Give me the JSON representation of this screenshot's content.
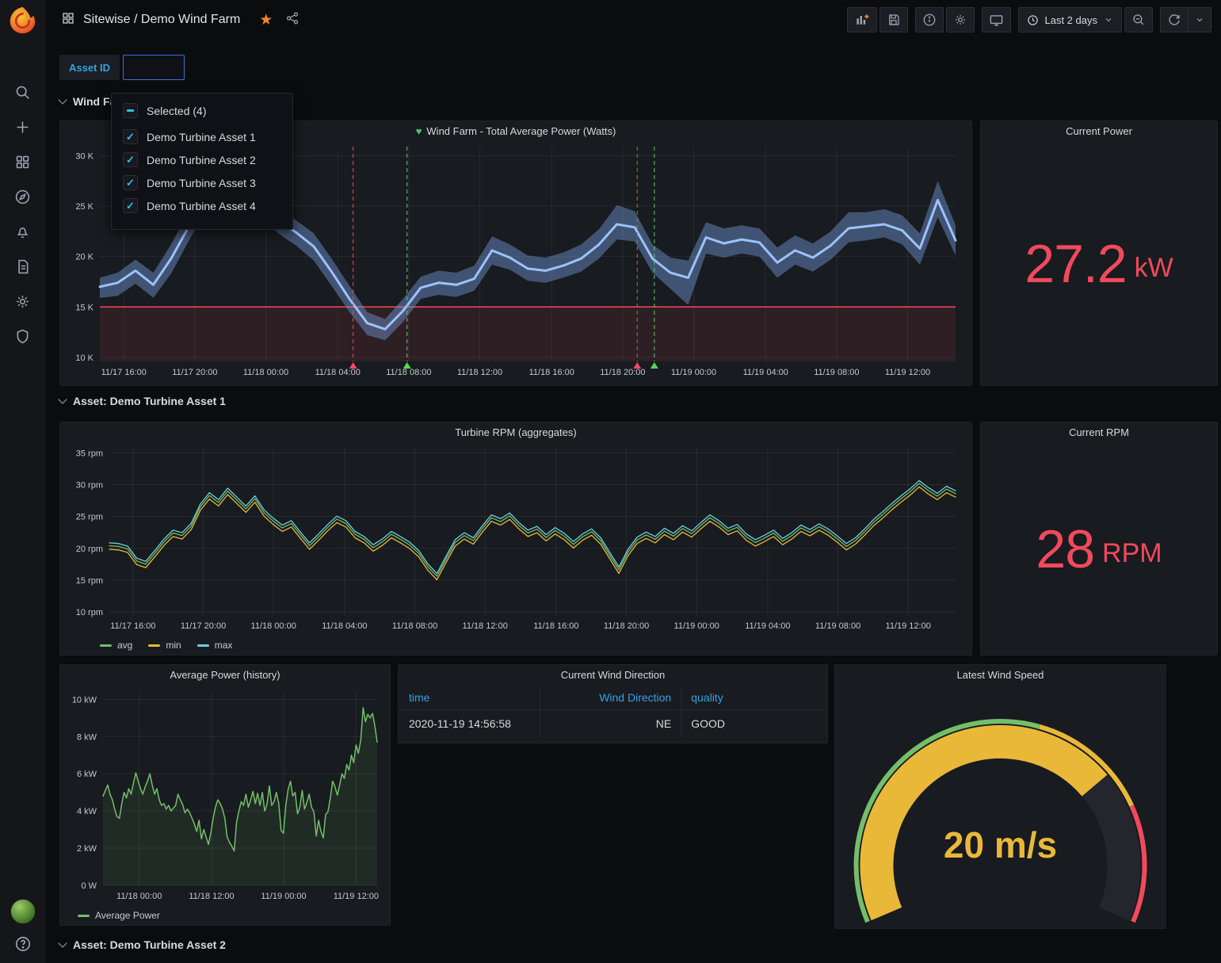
{
  "header": {
    "title": "Sitewise / Demo Wind Farm",
    "time_range": "Last 2 days",
    "toolbar_icons": [
      "add-panel-icon",
      "save-icon",
      "info-icon",
      "settings-icon",
      "tv-mode-icon",
      "clock-icon",
      "zoom-out-icon",
      "refresh-icon",
      "chevron-down-icon"
    ],
    "breadcrumb_icons": [
      "dashboards-icon",
      "favorite-star-icon",
      "share-icon"
    ]
  },
  "sidebar": {
    "icons": [
      "search-icon",
      "plus-icon",
      "dashboards-icon",
      "explore-icon",
      "alerting-icon",
      "docs-icon",
      "configuration-icon",
      "security-icon"
    ],
    "bottom_icons": [
      "user-avatar",
      "help-icon"
    ]
  },
  "variables": {
    "label": "Asset ID",
    "value": ""
  },
  "dropdown": {
    "selected_label": "Selected (4)",
    "options": [
      "Demo Turbine Asset 1",
      "Demo Turbine Asset 2",
      "Demo Turbine Asset 3",
      "Demo Turbine Asset 4"
    ]
  },
  "rows": [
    "Wind Farm",
    "Asset: Demo Turbine Asset 1",
    "Asset: Demo Turbine Asset 2"
  ],
  "colors": {
    "red": "#f2495c",
    "green": "#73bf69",
    "yellow": "#eab839",
    "cyan": "#6ed0e0",
    "line_blue": "#9cc2ff",
    "band_blue": "rgba(116,154,216,0.45)",
    "link_blue": "#33a2e5",
    "annotation_green": "#56d75a",
    "checkbox": "#33bfe0",
    "star_orange": "#f08a24"
  },
  "chart_data": [
    {
      "id": "wf-power",
      "type": "band",
      "title": "Wind Farm - Total Average Power (Watts)",
      "ylim": [
        9.6,
        30.9
      ],
      "yticks": [
        {
          "v": 10,
          "label": "10 K"
        },
        {
          "v": 15,
          "label": "15 K"
        },
        {
          "v": 20,
          "label": "20 K"
        },
        {
          "v": 25,
          "label": "25 K"
        },
        {
          "v": 30,
          "label": "30 K"
        }
      ],
      "xticks": [
        {
          "f": 0.028,
          "label": "11/17 16:00"
        },
        {
          "f": 0.111,
          "label": "11/17 20:00"
        },
        {
          "f": 0.194,
          "label": "11/18 00:00"
        },
        {
          "f": 0.278,
          "label": "11/18 04:00"
        },
        {
          "f": 0.361,
          "label": "11/18 08:00"
        },
        {
          "f": 0.444,
          "label": "11/18 12:00"
        },
        {
          "f": 0.528,
          "label": "11/18 16:00"
        },
        {
          "f": 0.611,
          "label": "11/18 20:00"
        },
        {
          "f": 0.694,
          "label": "11/19 00:00"
        },
        {
          "f": 0.778,
          "label": "11/19 04:00"
        },
        {
          "f": 0.861,
          "label": "11/19 08:00"
        },
        {
          "f": 0.944,
          "label": "11/19 12:00"
        }
      ],
      "threshold": {
        "value": 15,
        "color": "#f2495c",
        "fill": "rgba(242,73,92,0.10)"
      },
      "band": {
        "color": "rgba(116,154,216,0.45)",
        "lo": [
          15.9,
          16.1,
          17.3,
          15.9,
          18.3,
          21.6,
          24.6,
          26.1,
          25.3,
          24.0,
          22.3,
          21.1,
          19.6,
          17.1,
          14.5,
          12.2,
          11.7,
          13.5,
          15.8,
          16.2,
          16.0,
          16.6,
          19.2,
          18.7,
          17.6,
          17.4,
          17.9,
          18.5,
          19.8,
          21.7,
          21.5,
          18.4,
          16.8,
          15.2,
          20.3,
          19.9,
          20.3,
          20.0,
          17.9,
          19.2,
          18.5,
          19.7,
          21.4,
          21.6,
          21.9,
          21.2,
          19.2,
          23.9,
          20.1
        ],
        "hi": [
          17.9,
          18.4,
          19.7,
          18.4,
          21.2,
          24.6,
          27.7,
          29.6,
          28.4,
          26.9,
          24.9,
          23.6,
          22.3,
          19.8,
          17.1,
          14.5,
          13.8,
          15.8,
          18.0,
          18.6,
          18.4,
          19.1,
          22.0,
          21.2,
          20.1,
          19.9,
          20.4,
          21.2,
          22.7,
          25.1,
          24.5,
          21.2,
          19.9,
          19.6,
          23.4,
          22.8,
          23.1,
          22.8,
          20.9,
          22.1,
          21.3,
          22.5,
          24.4,
          24.4,
          24.7,
          24.1,
          22.3,
          27.5,
          23.1
        ]
      },
      "series": [
        {
          "name": "avg",
          "color": "#9cc2ff",
          "width": 3,
          "values": [
            17.0,
            17.4,
            18.6,
            17.2,
            19.8,
            23.0,
            26.0,
            27.6,
            26.8,
            25.4,
            23.6,
            22.4,
            21.0,
            18.5,
            15.8,
            13.4,
            12.8,
            14.6,
            16.9,
            17.4,
            17.2,
            17.8,
            20.6,
            19.9,
            18.8,
            18.6,
            19.1,
            19.8,
            21.2,
            23.2,
            22.9,
            19.8,
            18.4,
            17.9,
            21.9,
            21.3,
            21.7,
            21.4,
            19.4,
            20.6,
            19.9,
            21.1,
            22.8,
            23.0,
            23.2,
            22.6,
            20.8,
            25.6,
            21.6
          ]
        }
      ],
      "annotations": [
        {
          "f": 0.296,
          "color": "#f2495c"
        },
        {
          "f": 0.359,
          "color": "#56d75a"
        },
        {
          "f": 0.628,
          "color": "#f2495c"
        },
        {
          "f": 0.648,
          "color": "#56d75a"
        }
      ]
    },
    {
      "type": "stat",
      "title": "Current Power",
      "value": "27.2",
      "unit": "kW",
      "color": "#f2495c"
    },
    {
      "id": "turbine-rpm",
      "type": "multiline",
      "title": "Turbine RPM (aggregates)",
      "ylim": [
        9.5,
        35.8
      ],
      "yticks": [
        {
          "v": 10,
          "label": "10 rpm"
        },
        {
          "v": 15,
          "label": "15 rpm"
        },
        {
          "v": 20,
          "label": "20 rpm"
        },
        {
          "v": 25,
          "label": "25 rpm"
        },
        {
          "v": 30,
          "label": "30 rpm"
        },
        {
          "v": 35,
          "label": "35 rpm"
        }
      ],
      "xticks": [
        {
          "f": 0.028,
          "label": "11/17 16:00"
        },
        {
          "f": 0.111,
          "label": "11/17 20:00"
        },
        {
          "f": 0.194,
          "label": "11/18 00:00"
        },
        {
          "f": 0.278,
          "label": "11/18 04:00"
        },
        {
          "f": 0.361,
          "label": "11/18 08:00"
        },
        {
          "f": 0.444,
          "label": "11/18 12:00"
        },
        {
          "f": 0.528,
          "label": "11/18 16:00"
        },
        {
          "f": 0.611,
          "label": "11/18 20:00"
        },
        {
          "f": 0.694,
          "label": "11/19 00:00"
        },
        {
          "f": 0.778,
          "label": "11/19 04:00"
        },
        {
          "f": 0.861,
          "label": "11/19 08:00"
        },
        {
          "f": 0.944,
          "label": "11/19 12:00"
        }
      ],
      "series": [
        {
          "name": "avg",
          "color": "#73bf69",
          "width": 1.3,
          "values": [
            20.4,
            20.3,
            19.9,
            18.0,
            17.5,
            19.2,
            21.0,
            22.4,
            22.0,
            23.5,
            26.5,
            28.3,
            27.2,
            29.0,
            27.6,
            26.2,
            27.8,
            25.6,
            24.3,
            23.2,
            23.9,
            22.1,
            20.4,
            21.8,
            23.3,
            24.6,
            23.9,
            22.2,
            21.4,
            20.1,
            21.0,
            22.2,
            21.4,
            20.5,
            19.2,
            17.1,
            15.6,
            18.3,
            20.9,
            22.0,
            21.2,
            23.1,
            24.8,
            24.2,
            25.1,
            23.6,
            22.4,
            23.0,
            21.7,
            22.8,
            21.9,
            20.6,
            21.8,
            22.6,
            21.2,
            18.9,
            16.6,
            19.4,
            21.3,
            22.1,
            21.4,
            22.7,
            21.9,
            23.1,
            22.3,
            23.6,
            24.8,
            23.9,
            22.7,
            23.3,
            21.8,
            20.9,
            21.6,
            22.4,
            21.1,
            22.0,
            23.2,
            22.5,
            23.4,
            22.6,
            21.5,
            20.3,
            21.2,
            22.6,
            24.1,
            25.3,
            26.6,
            27.8,
            28.9,
            30.2,
            29.1,
            28.2,
            29.3,
            28.6
          ]
        },
        {
          "name": "min",
          "color": "#eab839",
          "width": 1.3,
          "offset": -0.55
        },
        {
          "name": "max",
          "color": "#6ed0e0",
          "width": 1.3,
          "offset": 0.45
        }
      ]
    },
    {
      "type": "stat",
      "title": "Current RPM",
      "value": "28",
      "unit": "RPM",
      "color": "#f2495c"
    },
    {
      "id": "avg-power-history",
      "type": "area",
      "title": "Average Power (history)",
      "ylim": [
        0,
        10.4
      ],
      "yticks": [
        {
          "v": 0,
          "label": "0 W"
        },
        {
          "v": 2,
          "label": "2 kW"
        },
        {
          "v": 4,
          "label": "4 kW"
        },
        {
          "v": 6,
          "label": "6 kW"
        },
        {
          "v": 8,
          "label": "8 kW"
        },
        {
          "v": 10,
          "label": "10 kW"
        }
      ],
      "xticks": [
        {
          "f": 0.132,
          "label": "11/18 00:00"
        },
        {
          "f": 0.396,
          "label": "11/18 12:00"
        },
        {
          "f": 0.659,
          "label": "11/19 00:00"
        },
        {
          "f": 0.923,
          "label": "11/19 12:00"
        }
      ],
      "series": [
        {
          "name": "Average Power",
          "color": "#73bf69",
          "width": 1.5,
          "fill": "rgba(115,191,105,0.10)",
          "values": [
            4.8,
            5.1,
            5.4,
            4.9,
            4.6,
            4.1,
            3.7,
            3.6,
            4.4,
            5.0,
            4.7,
            5.2,
            4.9,
            5.5,
            6.05,
            5.6,
            5.2,
            4.9,
            5.3,
            5.6,
            6.0,
            5.4,
            4.9,
            5.2,
            4.6,
            4.3,
            4.4,
            4.1,
            4.3,
            4.0,
            4.15,
            4.3,
            4.9,
            4.6,
            4.35,
            3.9,
            4.1,
            3.9,
            3.6,
            3.3,
            2.9,
            3.5,
            2.5,
            3.0,
            2.6,
            2.2,
            2.8,
            3.6,
            4.2,
            4.6,
            4.4,
            4.1,
            3.6,
            2.6,
            2.3,
            2.1,
            1.85,
            3.4,
            4.0,
            4.5,
            4.3,
            4.9,
            4.2,
            4.6,
            5.05,
            4.4,
            4.95,
            4.3,
            5.0,
            4.0,
            4.35,
            5.35,
            4.3,
            4.5,
            5.0,
            4.4,
            2.95,
            2.8,
            4.3,
            5.15,
            5.6,
            4.8,
            5.0,
            3.85,
            4.2,
            5.1,
            4.1,
            4.45,
            4.9,
            4.2,
            3.95,
            2.65,
            3.5,
            2.9,
            2.55,
            3.8,
            3.95,
            4.7,
            5.6,
            5.3,
            4.85,
            5.4,
            6.0,
            5.75,
            6.5,
            6.2,
            7.0,
            6.6,
            7.55,
            7.1,
            7.8,
            9.55,
            8.8,
            9.2,
            9.0,
            9.25,
            8.6,
            7.7
          ]
        }
      ]
    },
    {
      "type": "table",
      "title": "Current Wind Direction",
      "columns": [
        "time",
        "Wind Direction",
        "quality"
      ],
      "rows": [
        [
          "2020-11-19 14:56:58",
          "NE",
          "GOOD"
        ]
      ]
    },
    {
      "id": "wind-speed-gauge",
      "type": "gauge",
      "title": "Latest Wind Speed",
      "value": 20,
      "unit": "m/s",
      "display": "20 m/s",
      "percent": 0.72,
      "bar_color": "#eab839",
      "track_color": "#23262d",
      "ring_segments": [
        {
          "to": 0.57,
          "color": "#73bf69"
        },
        {
          "to": 0.79,
          "color": "#eab839"
        },
        {
          "to": 1.0,
          "color": "#f2495c"
        }
      ]
    }
  ]
}
